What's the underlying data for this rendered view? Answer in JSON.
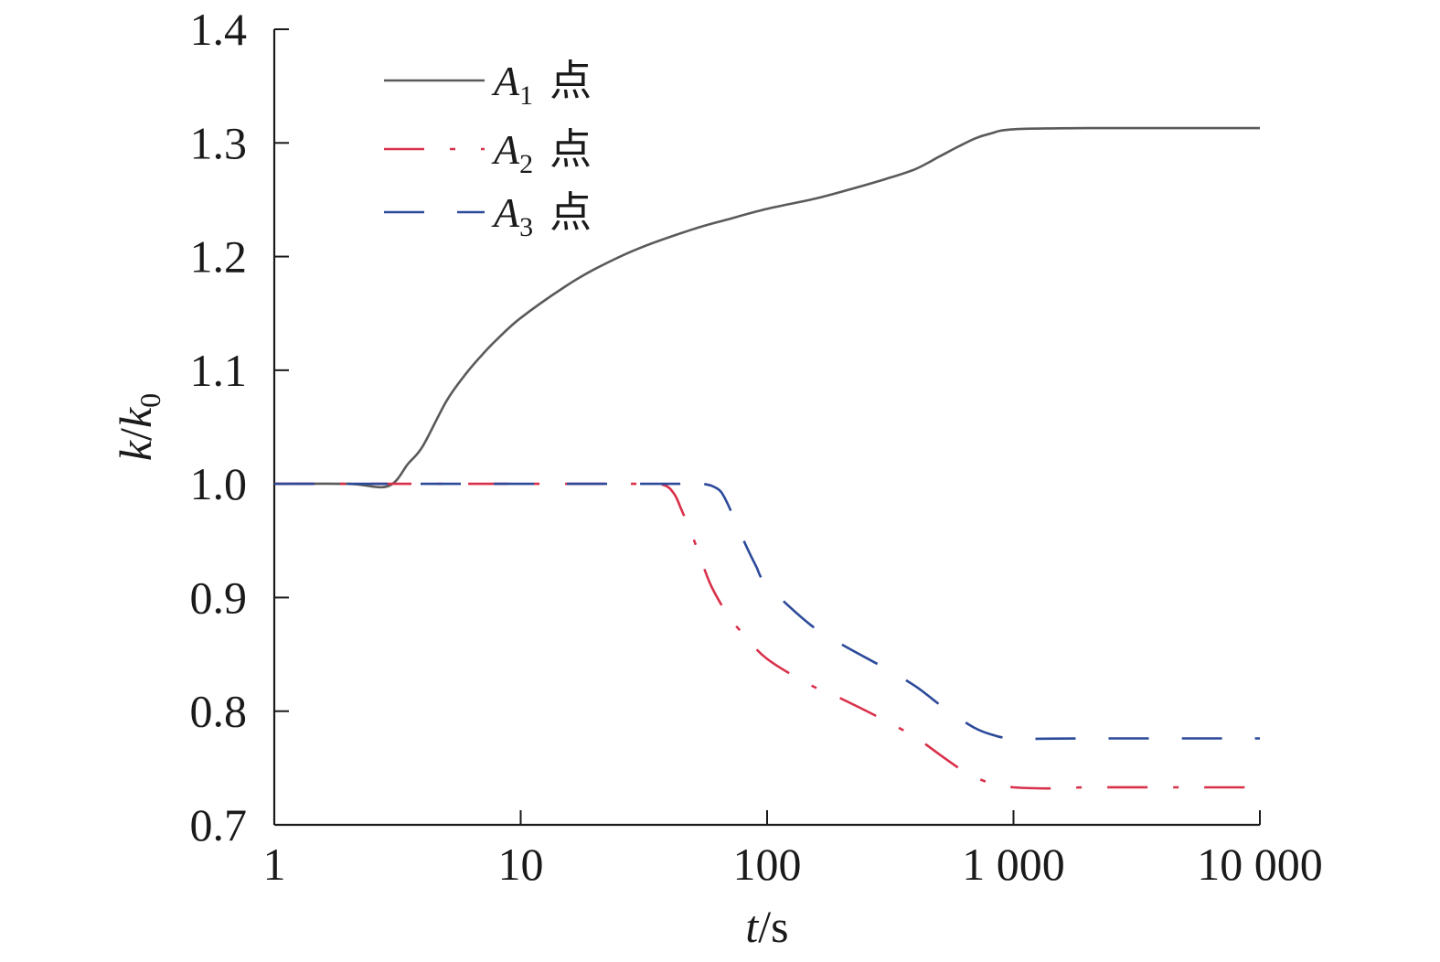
{
  "chart_data": {
    "type": "line",
    "x_scale": "log",
    "xlim": [
      1,
      10000
    ],
    "ylim": [
      0.7,
      1.4
    ],
    "x_ticks": [
      1,
      10,
      100,
      1000,
      10000
    ],
    "x_tick_labels": [
      "1",
      "10",
      "100",
      "1 000",
      "10 000"
    ],
    "y_ticks": [
      0.7,
      0.8,
      0.9,
      1.0,
      1.1,
      1.2,
      1.3,
      1.4
    ],
    "y_tick_labels": [
      "0.7",
      "0.8",
      "0.9",
      "1.0",
      "1.1",
      "1.2",
      "1.3",
      "1.4"
    ],
    "xlabel": {
      "var": "t",
      "unit": "/s"
    },
    "ylabel": {
      "num": "k",
      "slash": "/",
      "den": "k",
      "den_sub": "0"
    },
    "legend_position": "top-left",
    "grid": false,
    "series": [
      {
        "name": "A1 点",
        "name_main": "A",
        "name_sub": "1",
        "name_suffix": "点",
        "color": "#5a5a5a",
        "style": "solid",
        "x": [
          1,
          2,
          2.9,
          3.5,
          4,
          5,
          6,
          7,
          8,
          10,
          15,
          20,
          30,
          50,
          70,
          100,
          150,
          200,
          300,
          400,
          500,
          600,
          700,
          800,
          1000,
          2000,
          5000,
          10000
        ],
        "y": [
          1.0,
          1.0,
          0.998,
          1.018,
          1.033,
          1.073,
          1.097,
          1.114,
          1.127,
          1.146,
          1.173,
          1.189,
          1.207,
          1.224,
          1.233,
          1.242,
          1.25,
          1.257,
          1.268,
          1.277,
          1.288,
          1.297,
          1.304,
          1.308,
          1.312,
          1.313,
          1.313,
          1.313
        ]
      },
      {
        "name": "A2 点",
        "name_main": "A",
        "name_sub": "2",
        "name_suffix": "点",
        "color": "#d9304a",
        "style": "dashdot",
        "x": [
          1,
          10,
          30,
          38,
          42,
          45,
          50,
          55,
          60,
          70,
          80,
          100,
          150,
          200,
          300,
          400,
          500,
          600,
          700,
          800,
          1000,
          1500,
          2000,
          5000,
          10000
        ],
        "y": [
          1.0,
          1.0,
          1.0,
          0.999,
          0.991,
          0.977,
          0.953,
          0.928,
          0.908,
          0.883,
          0.868,
          0.846,
          0.823,
          0.811,
          0.792,
          0.777,
          0.762,
          0.75,
          0.742,
          0.737,
          0.733,
          0.732,
          0.733,
          0.733,
          0.733
        ]
      },
      {
        "name": "A3 点",
        "name_main": "A",
        "name_sub": "3",
        "name_suffix": "点",
        "color": "#2c4a9a",
        "style": "dashed",
        "x": [
          1,
          10,
          45,
          50,
          55,
          60,
          65,
          70,
          80,
          90,
          100,
          150,
          200,
          300,
          400,
          500,
          600,
          700,
          800,
          1000,
          2000,
          5000,
          10000
        ],
        "y": [
          1.0,
          1.0,
          1.0,
          1.0,
          1.0,
          0.998,
          0.993,
          0.98,
          0.951,
          0.928,
          0.911,
          0.876,
          0.859,
          0.838,
          0.822,
          0.806,
          0.794,
          0.785,
          0.78,
          0.776,
          0.776,
          0.776,
          0.776
        ]
      }
    ]
  }
}
